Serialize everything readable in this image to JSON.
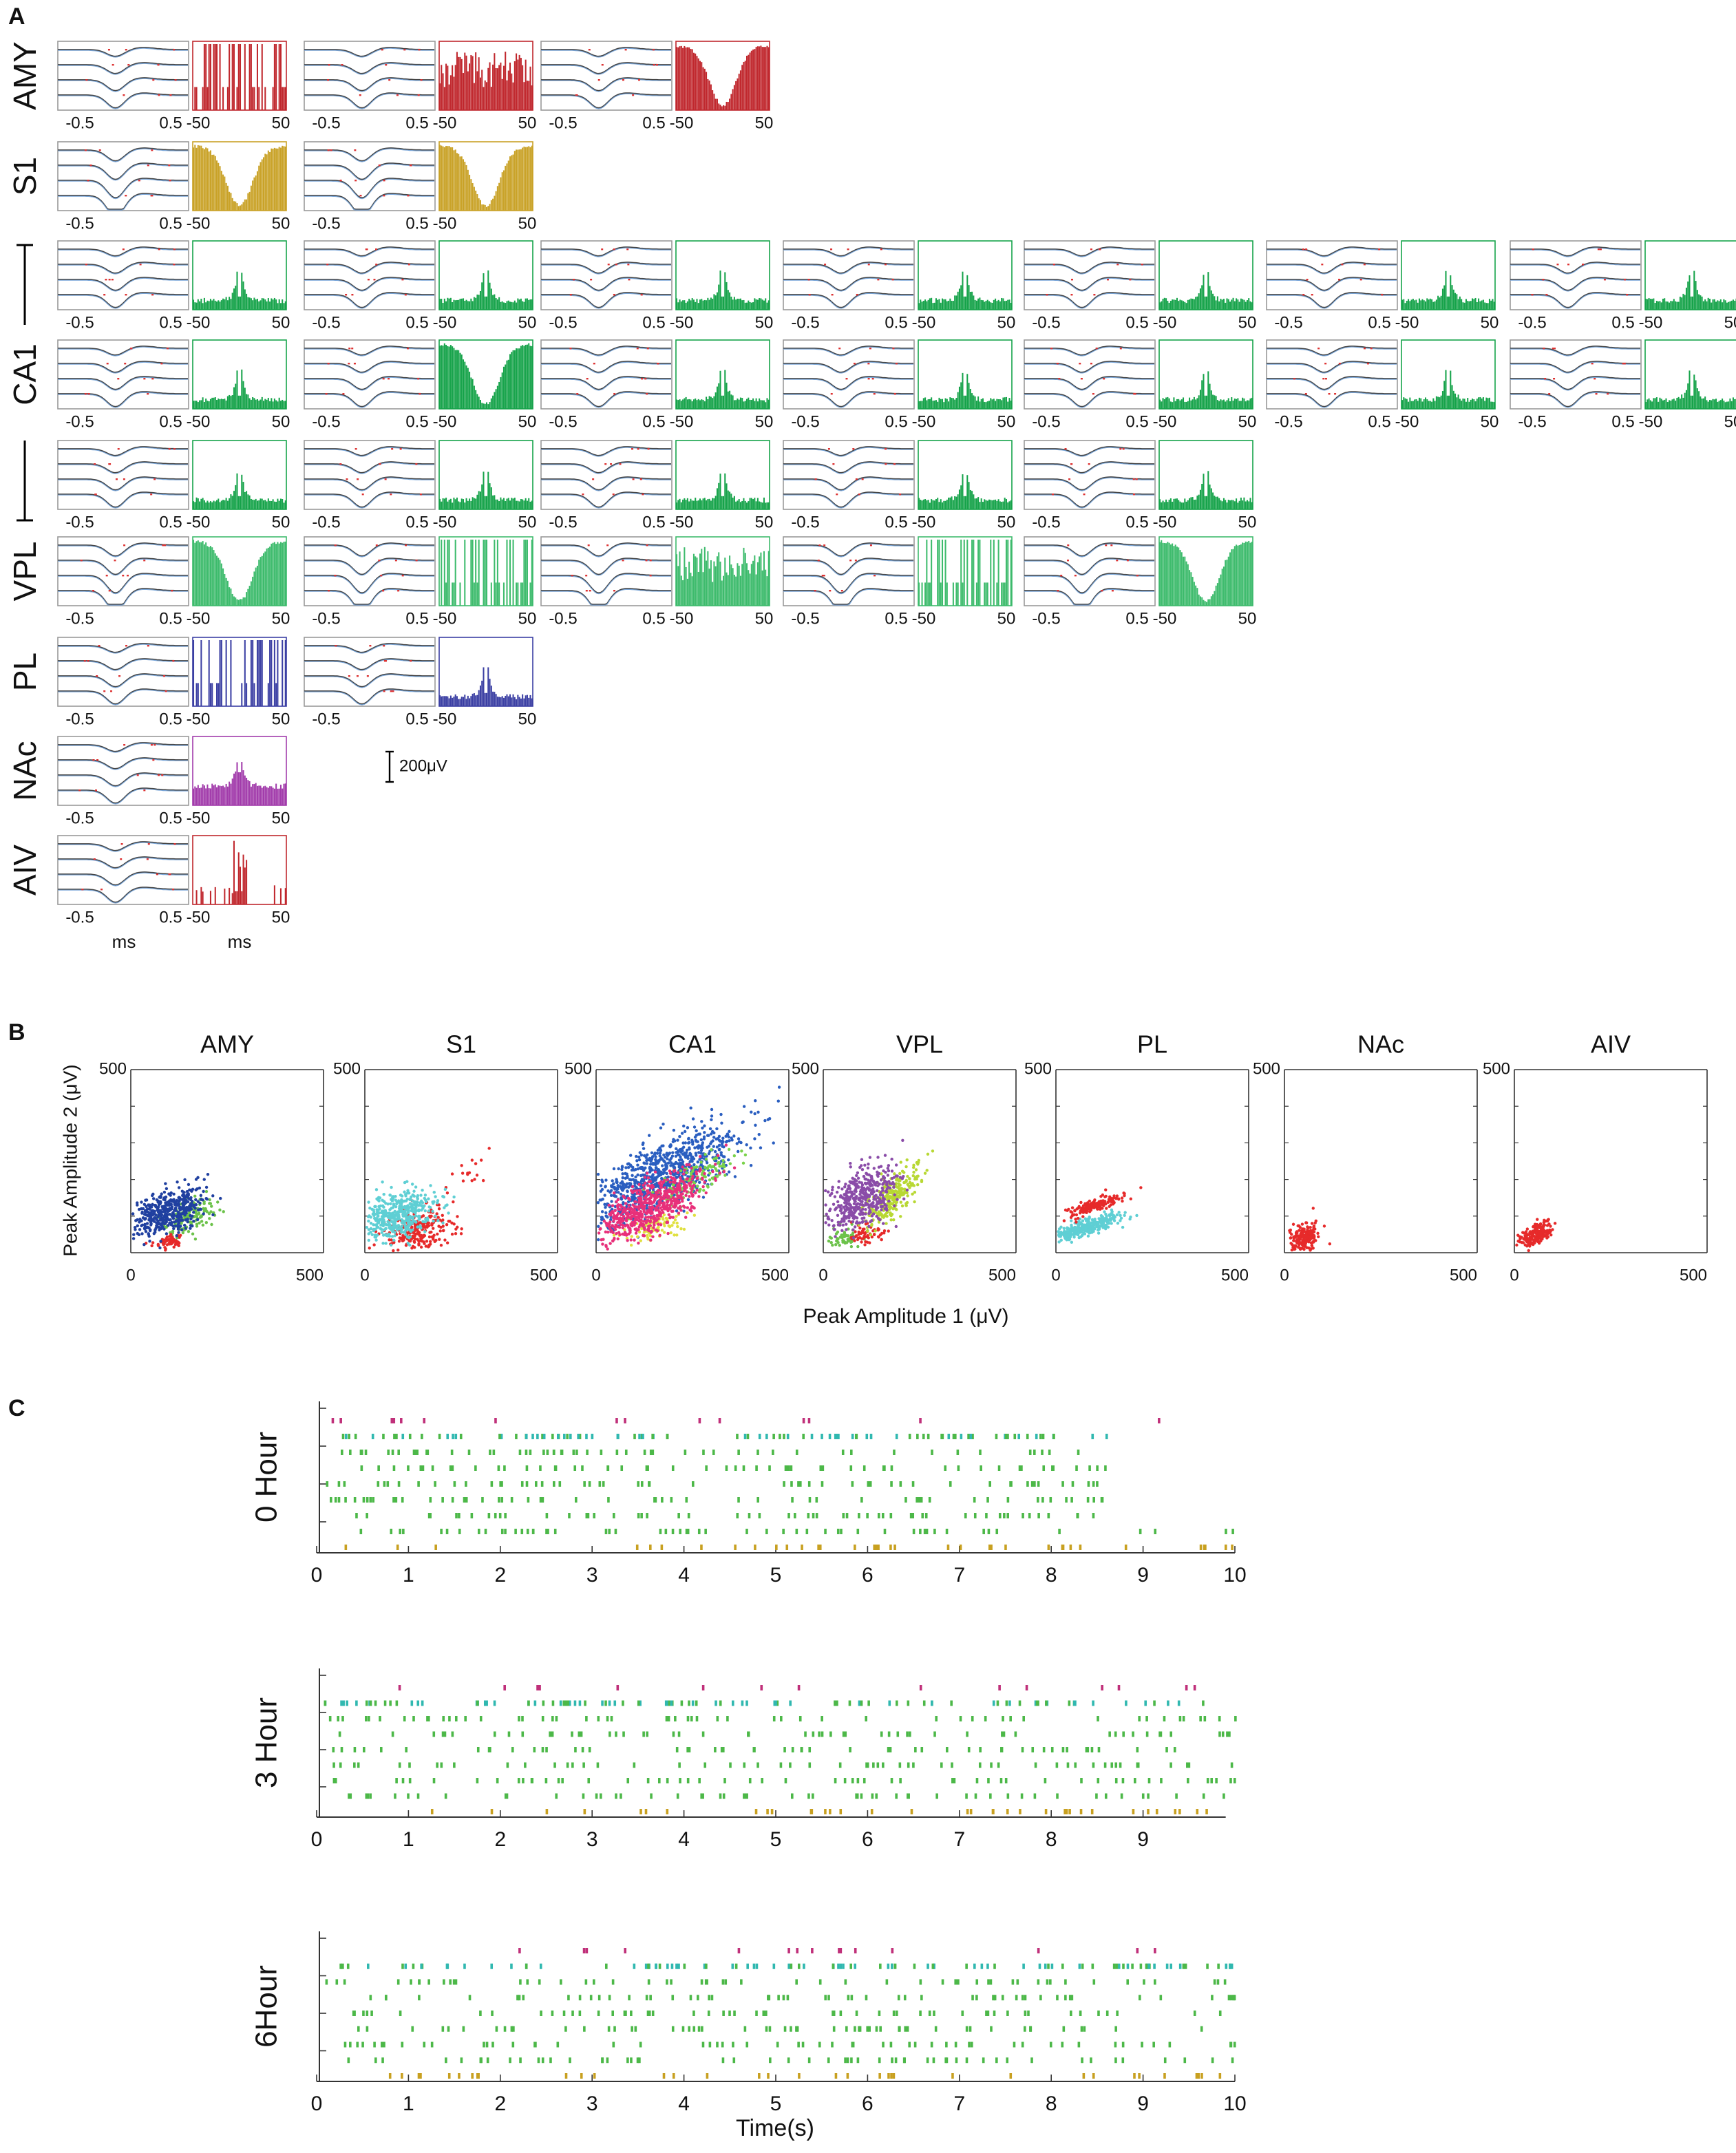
{
  "panel_a": {
    "label": "A",
    "regions": [
      "AMY",
      "S1",
      "CA1",
      "VPL",
      "PL",
      "NAc",
      "AIV"
    ],
    "waveform_ticks": [
      "-0.5",
      "0.5"
    ],
    "histogram_ticks": [
      "-50",
      "50"
    ],
    "x_unit": "ms",
    "scale_bar": "200μV"
  },
  "panel_b": {
    "label": "B",
    "titles": [
      "AMY",
      "S1",
      "CA1",
      "VPL",
      "PL",
      "NAc",
      "AIV"
    ],
    "x_label": "Peak Amplitude 1 (μV)",
    "y_label": "Peak Amplitude 2 (μV)",
    "ticks": [
      0,
      500
    ]
  },
  "panel_c": {
    "label": "C",
    "x_label": "Time(s)",
    "plots": [
      {
        "y_label": "0 Hour",
        "xlim": [
          0,
          10
        ],
        "xticks": [
          0,
          1,
          2,
          3,
          4,
          5,
          6,
          7,
          8,
          9,
          10
        ]
      },
      {
        "y_label": "3 Hour",
        "xlim": [
          0,
          9.9
        ],
        "xticks": [
          0,
          1,
          2,
          3,
          4,
          5,
          6,
          7,
          8,
          9
        ]
      },
      {
        "y_label": "6Hour",
        "xlim": [
          0,
          10
        ],
        "xticks": [
          0,
          1,
          2,
          3,
          4,
          5,
          6,
          7,
          8,
          9,
          10
        ]
      }
    ]
  }
}
